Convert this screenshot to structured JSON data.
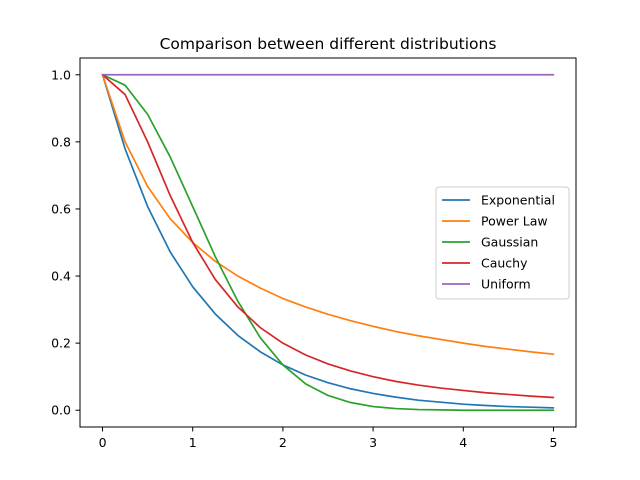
{
  "chart_data": {
    "type": "line",
    "title": "Comparison between different distributions",
    "xlabel": "",
    "ylabel": "",
    "xlim": [
      -0.25,
      5.25
    ],
    "ylim": [
      -0.05,
      1.05
    ],
    "xticks": [
      0,
      1,
      2,
      3,
      4,
      5
    ],
    "yticks": [
      0.0,
      0.2,
      0.4,
      0.6,
      0.8,
      1.0
    ],
    "xtick_labels": [
      "0",
      "1",
      "2",
      "3",
      "4",
      "5"
    ],
    "ytick_labels": [
      "0.0",
      "0.2",
      "0.4",
      "0.6",
      "0.8",
      "1.0"
    ],
    "grid": false,
    "legend_position": "center-right",
    "x": [
      0,
      0.25,
      0.5,
      0.75,
      1,
      1.25,
      1.5,
      1.75,
      2,
      2.25,
      2.5,
      2.75,
      3,
      3.25,
      3.5,
      3.75,
      4,
      4.25,
      4.5,
      4.75,
      5
    ],
    "series": [
      {
        "name": "Exponential",
        "color": "#1f77b4",
        "values": [
          1.0,
          0.779,
          0.607,
          0.472,
          0.368,
          0.287,
          0.223,
          0.174,
          0.135,
          0.105,
          0.082,
          0.064,
          0.05,
          0.039,
          0.03,
          0.024,
          0.018,
          0.014,
          0.011,
          0.009,
          0.007
        ]
      },
      {
        "name": "Power Law",
        "color": "#ff7f0e",
        "values": [
          1.0,
          0.8,
          0.667,
          0.571,
          0.5,
          0.444,
          0.4,
          0.364,
          0.333,
          0.308,
          0.286,
          0.267,
          0.25,
          0.235,
          0.222,
          0.211,
          0.2,
          0.19,
          0.182,
          0.174,
          0.167
        ]
      },
      {
        "name": "Gaussian",
        "color": "#2ca02c",
        "values": [
          1.0,
          0.969,
          0.882,
          0.755,
          0.607,
          0.458,
          0.325,
          0.216,
          0.135,
          0.079,
          0.044,
          0.023,
          0.011,
          0.005,
          0.002,
          0.001,
          0.0,
          0.0,
          0.0,
          0.0,
          0.0
        ]
      },
      {
        "name": "Cauchy",
        "color": "#d62728",
        "values": [
          1.0,
          0.941,
          0.8,
          0.64,
          0.5,
          0.39,
          0.308,
          0.246,
          0.2,
          0.165,
          0.138,
          0.117,
          0.1,
          0.086,
          0.075,
          0.066,
          0.059,
          0.052,
          0.047,
          0.042,
          0.038
        ]
      },
      {
        "name": "Uniform",
        "color": "#9467bd",
        "values": [
          1.0,
          1.0,
          1.0,
          1.0,
          1.0,
          1.0,
          1.0,
          1.0,
          1.0,
          1.0,
          1.0,
          1.0,
          1.0,
          1.0,
          1.0,
          1.0,
          1.0,
          1.0,
          1.0,
          1.0,
          1.0
        ]
      }
    ]
  }
}
